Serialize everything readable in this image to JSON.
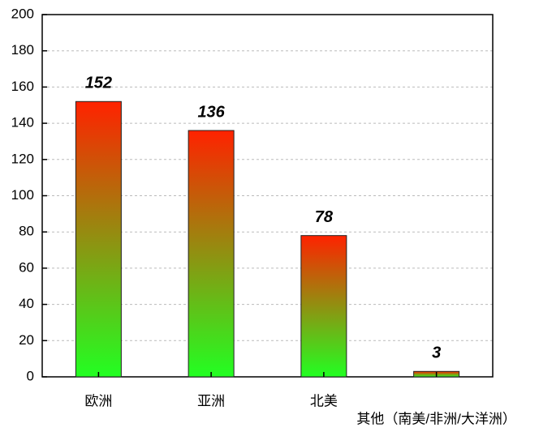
{
  "chart_data": {
    "type": "bar",
    "categories": [
      "欧洲",
      "亚洲",
      "北美",
      "其他（南美/非洲/大洋洲）"
    ],
    "values": [
      152,
      136,
      78,
      3
    ],
    "gradient": [
      "#ff2200",
      "#22ff22"
    ],
    "ylim": [
      0,
      200
    ],
    "yticks": [
      0,
      20,
      40,
      60,
      80,
      100,
      120,
      140,
      160,
      180,
      200
    ],
    "grid": true,
    "data_labels": true
  }
}
